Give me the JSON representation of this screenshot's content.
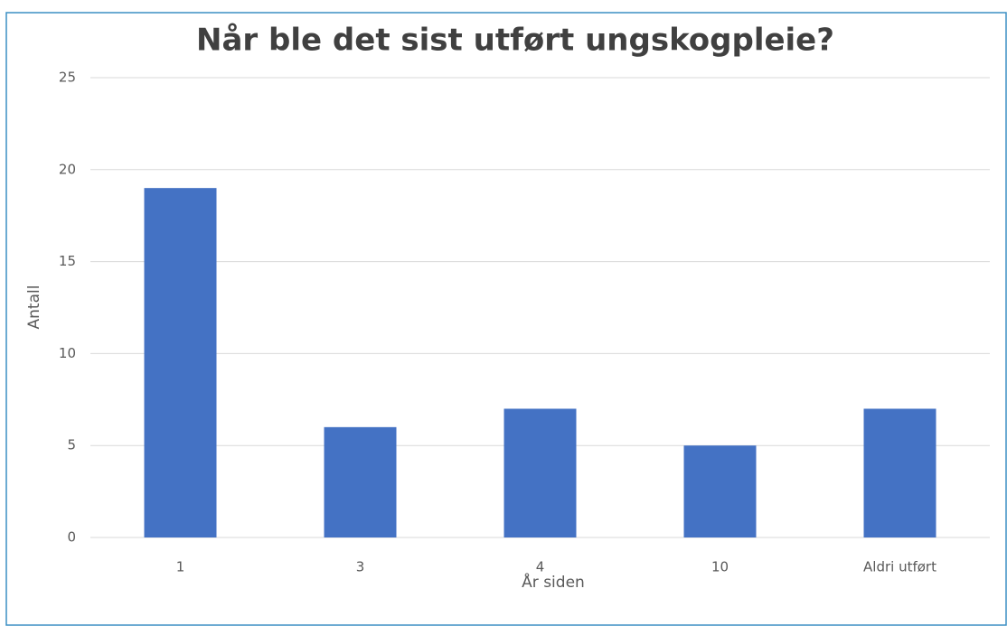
{
  "chart_data": {
    "type": "bar",
    "title": "Når ble det sist utført ungskogpleie?",
    "x_label": "År siden",
    "y_label": "Antall",
    "categories": [
      "1",
      "3",
      "4",
      "10",
      "Aldri utført"
    ],
    "values": [
      19,
      6,
      7,
      5,
      7
    ],
    "color": "#4472c4",
    "ylim": [
      0,
      25
    ],
    "yticks": [
      0,
      5,
      10,
      15,
      20,
      25
    ],
    "grid": true
  }
}
